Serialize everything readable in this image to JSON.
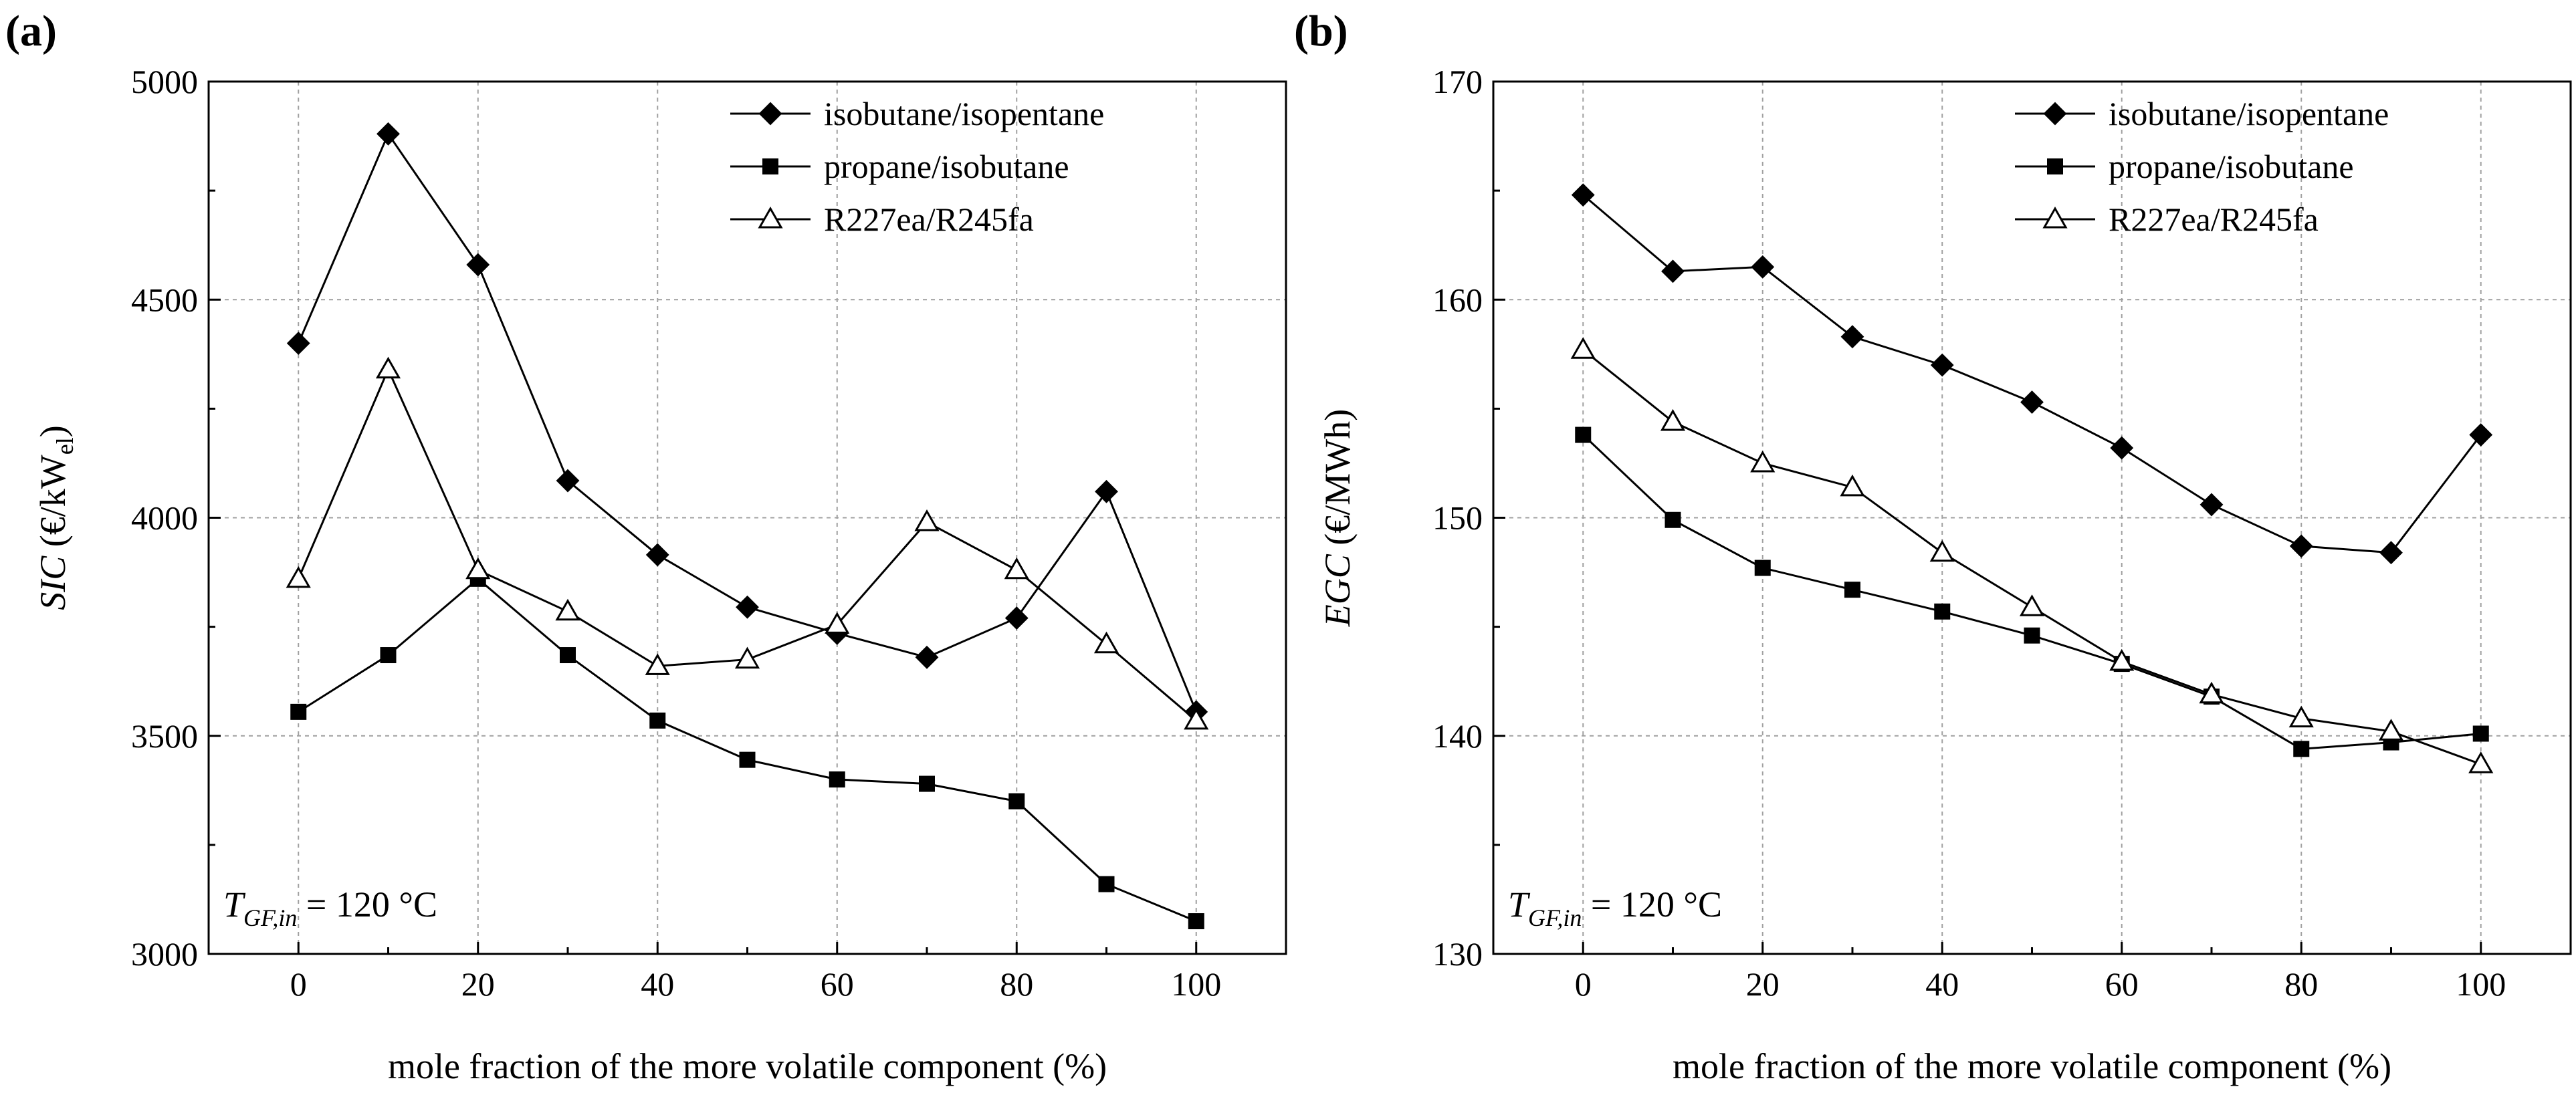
{
  "panels": [
    {
      "label": "(a)",
      "ylabel_main": "SIC",
      "ylabel_unit": " (€/kW",
      "ylabel_sub": "el",
      "ylabel_close": ")",
      "annotation": {
        "T": "T",
        "sub": "GF,in",
        "value": " = 120 °C"
      }
    },
    {
      "label": "(b)",
      "ylabel_main": "EGC",
      "ylabel_unit": " (€/MWh)",
      "ylabel_sub": "",
      "ylabel_close": "",
      "annotation": {
        "T": "T",
        "sub": "GF,in",
        "value": " = 120 °C"
      }
    }
  ],
  "colors": {
    "line": "#000000",
    "grid": "#a0a0a0",
    "background": "#ffffff"
  },
  "chart_data": [
    {
      "type": "line",
      "title": "",
      "xlabel": "mole fraction of the more volatile component  (%)",
      "ylabel": "SIC (€/kWel)",
      "xlim": [
        -10,
        110
      ],
      "ylim": [
        3000,
        5000
      ],
      "xticks": [
        0,
        20,
        40,
        60,
        80,
        100
      ],
      "yticks": [
        3000,
        3500,
        4000,
        4500,
        5000
      ],
      "grid": true,
      "legend_position": "top-right",
      "x": [
        0,
        10,
        20,
        30,
        40,
        50,
        60,
        70,
        80,
        90,
        100
      ],
      "series": [
        {
          "name": "isobutane/isopentane",
          "marker": "diamond",
          "values": [
            4400,
            4880,
            4580,
            4085,
            3915,
            3795,
            3735,
            3680,
            3770,
            4060,
            3555
          ]
        },
        {
          "name": "propane/isobutane",
          "marker": "square",
          "values": [
            3555,
            3685,
            3860,
            3685,
            3535,
            3445,
            3400,
            3390,
            3350,
            3160,
            3075
          ]
        },
        {
          "name": "R227ea/R245fa",
          "marker": "triangle-open",
          "values": [
            3860,
            4340,
            3880,
            3785,
            3660,
            3675,
            3755,
            3990,
            3880,
            3710,
            3535
          ]
        }
      ]
    },
    {
      "type": "line",
      "title": "",
      "xlabel": "mole fraction of the more volatile component  (%)",
      "ylabel": "EGC (€/MWh)",
      "xlim": [
        -10,
        110
      ],
      "ylim": [
        130,
        170
      ],
      "xticks": [
        0,
        20,
        40,
        60,
        80,
        100
      ],
      "yticks": [
        130,
        140,
        150,
        160,
        170
      ],
      "grid": true,
      "legend_position": "top-right",
      "x": [
        0,
        10,
        20,
        30,
        40,
        50,
        60,
        70,
        80,
        90,
        100
      ],
      "series": [
        {
          "name": "isobutane/isopentane",
          "marker": "diamond",
          "values": [
            164.8,
            161.3,
            161.5,
            158.3,
            157.0,
            155.3,
            153.2,
            150.6,
            148.7,
            148.4,
            153.8
          ]
        },
        {
          "name": "propane/isobutane",
          "marker": "square",
          "values": [
            153.8,
            149.9,
            147.7,
            146.7,
            145.7,
            144.6,
            143.3,
            141.8,
            139.4,
            139.7,
            140.1
          ]
        },
        {
          "name": "R227ea/R245fa",
          "marker": "triangle-open",
          "values": [
            157.7,
            154.4,
            152.5,
            151.4,
            148.4,
            145.9,
            143.4,
            141.9,
            140.8,
            140.2,
            138.7
          ]
        }
      ]
    }
  ]
}
